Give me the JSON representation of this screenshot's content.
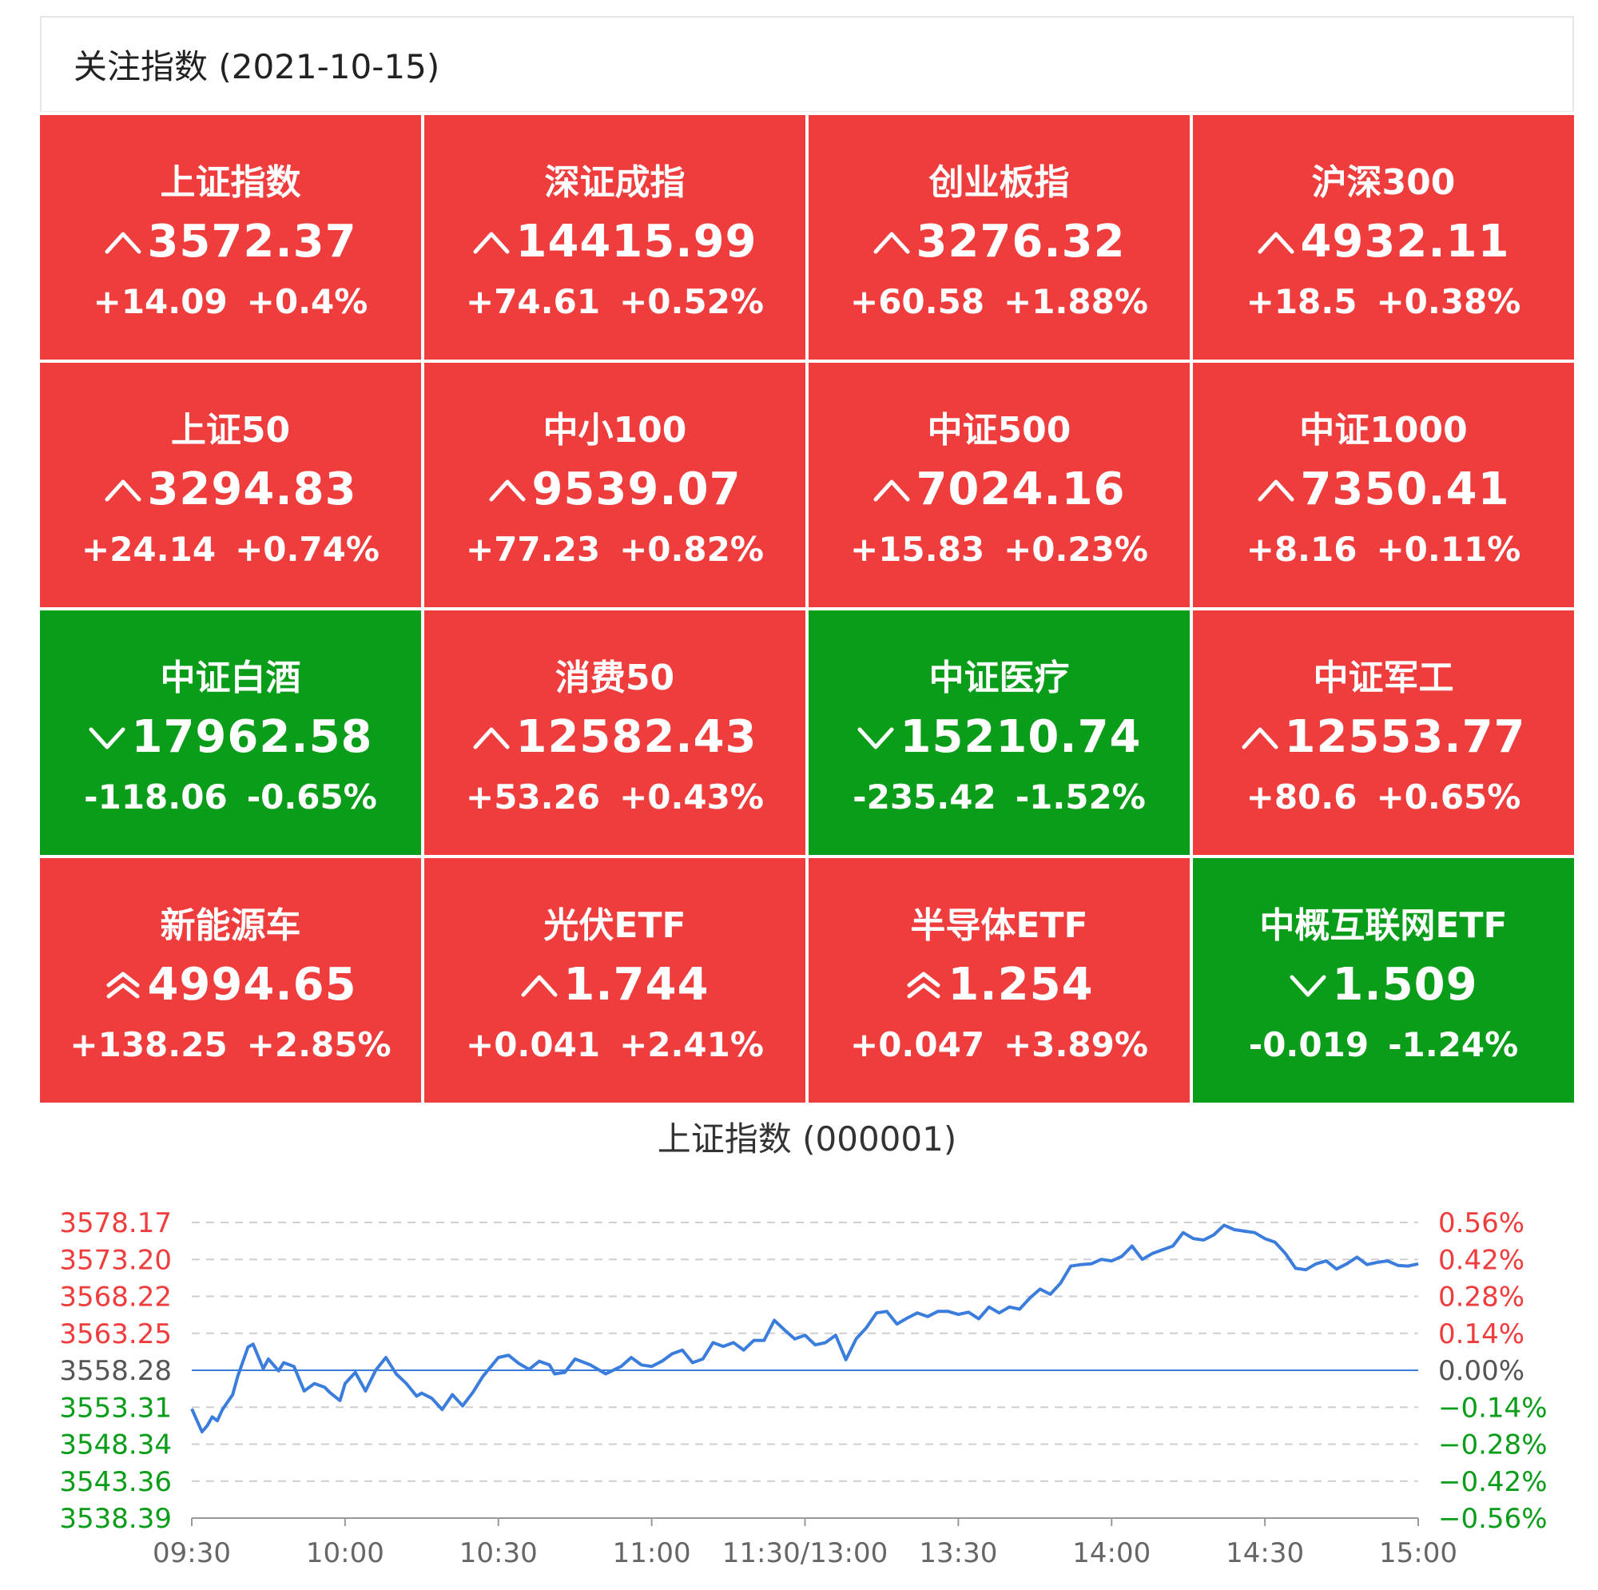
{
  "header": {
    "title": "关注指数 (2021-10-15)"
  },
  "colors": {
    "up": "#ef3d3d",
    "down": "#0a9d19",
    "line": "#3b7ddd",
    "baseline": "#3b7ddd",
    "grid": "#cfcfcf",
    "neutral": "#555555"
  },
  "tiles": [
    {
      "name": "上证指数",
      "arrow": "up",
      "price": "3572.37",
      "change": "+14.09",
      "pct": "+0.4%",
      "status": "up"
    },
    {
      "name": "深证成指",
      "arrow": "up",
      "price": "14415.99",
      "change": "+74.61",
      "pct": "+0.52%",
      "status": "up"
    },
    {
      "name": "创业板指",
      "arrow": "up",
      "price": "3276.32",
      "change": "+60.58",
      "pct": "+1.88%",
      "status": "up"
    },
    {
      "name": "沪深300",
      "arrow": "up",
      "price": "4932.11",
      "change": "+18.5",
      "pct": "+0.38%",
      "status": "up"
    },
    {
      "name": "上证50",
      "arrow": "up",
      "price": "3294.83",
      "change": "+24.14",
      "pct": "+0.74%",
      "status": "up"
    },
    {
      "name": "中小100",
      "arrow": "up",
      "price": "9539.07",
      "change": "+77.23",
      "pct": "+0.82%",
      "status": "up"
    },
    {
      "name": "中证500",
      "arrow": "up",
      "price": "7024.16",
      "change": "+15.83",
      "pct": "+0.23%",
      "status": "up"
    },
    {
      "name": "中证1000",
      "arrow": "up",
      "price": "7350.41",
      "change": "+8.16",
      "pct": "+0.11%",
      "status": "up"
    },
    {
      "name": "中证白酒",
      "arrow": "down",
      "price": "17962.58",
      "change": "-118.06",
      "pct": "-0.65%",
      "status": "down"
    },
    {
      "name": "消费50",
      "arrow": "up",
      "price": "12582.43",
      "change": "+53.26",
      "pct": "+0.43%",
      "status": "up"
    },
    {
      "name": "中证医疗",
      "arrow": "down",
      "price": "15210.74",
      "change": "-235.42",
      "pct": "-1.52%",
      "status": "down"
    },
    {
      "name": "中证军工",
      "arrow": "up",
      "price": "12553.77",
      "change": "+80.6",
      "pct": "+0.65%",
      "status": "up"
    },
    {
      "name": "新能源车",
      "arrow": "double-up",
      "price": "4994.65",
      "change": "+138.25",
      "pct": "+2.85%",
      "status": "up"
    },
    {
      "name": "光伏ETF",
      "arrow": "up",
      "price": "1.744",
      "change": "+0.041",
      "pct": "+2.41%",
      "status": "up"
    },
    {
      "name": "半导体ETF",
      "arrow": "double-up",
      "price": "1.254",
      "change": "+0.047",
      "pct": "+3.89%",
      "status": "up"
    },
    {
      "name": "中概互联网ETF",
      "arrow": "down",
      "price": "1.509",
      "change": "-0.019",
      "pct": "-1.24%",
      "status": "down"
    }
  ],
  "chart_data": {
    "type": "line",
    "title": "上证指数 (000001)",
    "base": 3558.28,
    "y_left_ticks": [
      "3578.17",
      "3573.20",
      "3568.22",
      "3563.25",
      "3558.28",
      "3553.31",
      "3548.34",
      "3543.36",
      "3538.39"
    ],
    "y_right_ticks": [
      "0.56%",
      "0.42%",
      "0.28%",
      "0.14%",
      "0.00%",
      "−0.14%",
      "−0.28%",
      "−0.42%",
      "−0.56%"
    ],
    "ylim": [
      3538.39,
      3578.17
    ],
    "x_ticks": [
      "09:30",
      "10:00",
      "10:30",
      "11:00",
      "11:30/13:00",
      "13:30",
      "14:00",
      "14:30",
      "15:00"
    ],
    "x_minutes_total": 240,
    "grid": true,
    "series": [
      {
        "x": [
          0,
          2,
          3,
          4,
          5,
          6,
          8,
          9,
          11,
          12,
          14,
          15,
          17,
          18,
          20,
          22,
          24,
          26,
          27,
          29,
          30,
          32,
          34,
          36,
          38,
          40,
          42,
          44,
          45,
          47,
          49,
          51,
          53,
          55,
          57,
          60,
          62,
          64,
          66,
          68,
          70,
          71,
          73,
          75,
          78,
          81,
          84,
          86,
          88,
          90,
          92,
          94,
          96,
          98,
          100,
          102,
          104,
          106,
          108,
          110,
          112,
          114,
          116,
          118,
          120,
          122,
          124,
          126,
          128,
          130,
          132,
          134,
          136,
          138,
          140,
          142,
          144,
          146,
          148,
          150,
          152,
          154,
          156,
          158,
          160,
          162,
          164,
          166,
          168,
          170,
          172,
          174,
          176,
          178,
          180,
          182,
          184,
          186,
          188,
          190,
          192,
          194,
          196,
          198,
          200,
          202,
          204,
          206,
          208,
          210,
          212,
          214,
          216,
          218,
          220,
          222,
          224,
          226,
          228,
          230,
          232,
          234,
          236,
          238,
          240
        ],
        "values": [
          3553.1,
          3550.0,
          3550.8,
          3552.0,
          3551.5,
          3553.0,
          3555.0,
          3557.5,
          3561.4,
          3561.8,
          3558.5,
          3559.8,
          3558.2,
          3559.3,
          3558.8,
          3555.5,
          3556.5,
          3556.0,
          3555.3,
          3554.2,
          3556.5,
          3558.0,
          3555.5,
          3558.3,
          3560.0,
          3557.8,
          3556.5,
          3554.8,
          3555.2,
          3554.5,
          3553.0,
          3555.0,
          3553.5,
          3555.3,
          3557.5,
          3560.0,
          3560.3,
          3559.2,
          3558.4,
          3559.5,
          3559.0,
          3557.8,
          3558.0,
          3559.8,
          3559.0,
          3557.8,
          3558.8,
          3560.0,
          3559.0,
          3558.8,
          3559.5,
          3560.5,
          3561.0,
          3559.3,
          3559.8,
          3562.0,
          3561.5,
          3562.0,
          3561.0,
          3562.3,
          3562.3,
          3565.0,
          3563.7,
          3562.5,
          3563.0,
          3561.7,
          3562.0,
          3563.0,
          3559.7,
          3562.5,
          3564.0,
          3566.0,
          3566.2,
          3564.5,
          3565.3,
          3566.0,
          3565.5,
          3566.2,
          3566.2,
          3565.8,
          3566.1,
          3565.2,
          3566.8,
          3566.0,
          3566.8,
          3566.5,
          3568.0,
          3569.2,
          3568.5,
          3570.0,
          3572.3,
          3572.5,
          3572.6,
          3573.2,
          3573.0,
          3573.6,
          3575.0,
          3573.2,
          3574.0,
          3574.5,
          3575.0,
          3576.8,
          3576.0,
          3575.8,
          3576.5,
          3577.8,
          3577.2,
          3577.0,
          3576.8,
          3576.0,
          3575.5,
          3574.0,
          3572.0,
          3571.8,
          3572.6,
          3573.0,
          3571.9,
          3572.6,
          3573.5,
          3572.5,
          3572.8,
          3573.0,
          3572.4,
          3572.3,
          3572.6
        ]
      }
    ]
  }
}
